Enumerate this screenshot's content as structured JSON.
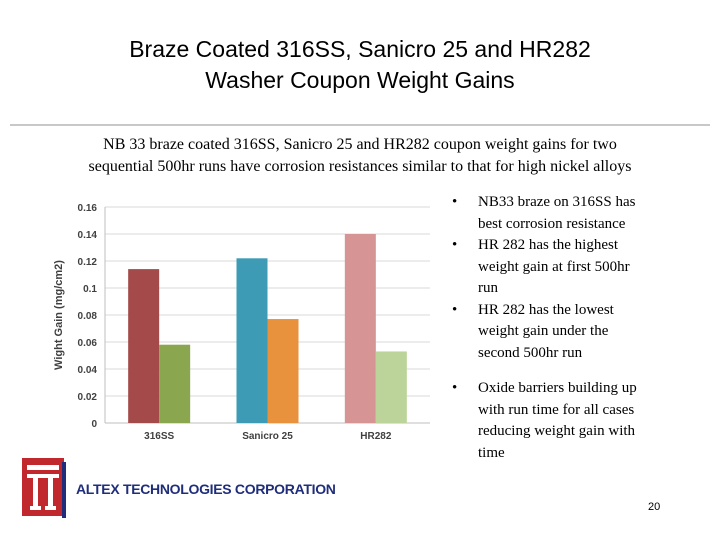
{
  "slide": {
    "title_line1": "Braze Coated 316SS, Sanicro 25 and HR282",
    "title_line2": "Washer Coupon Weight Gains",
    "subtitle_line1": "NB 33 braze coated 316SS, Sanicro 25 and HR282 coupon weight gains for two",
    "subtitle_line2": "sequential 500hr runs have corrosion resistances similar to that for high nickel alloys",
    "bullets_group1": [
      {
        "mark": "•",
        "lines": [
          "NB33 braze on 316SS has",
          "best corrosion resistance"
        ]
      },
      {
        "mark": "•",
        "lines": [
          "HR 282 has the highest",
          "weight gain at first 500hr",
          "run"
        ]
      },
      {
        "mark": "•",
        "lines": [
          "HR 282 has the lowest",
          "weight gain under the",
          "second 500hr run"
        ]
      }
    ],
    "bullets_group2": [
      {
        "mark": "•",
        "lines": [
          "Oxide barriers building up",
          "with run time for all cases",
          "reducing weight gain with",
          "time"
        ]
      }
    ],
    "company": "ALTEX TECHNOLOGIES CORPORATION",
    "page_number": "20"
  },
  "chart_data": {
    "type": "bar",
    "categories": [
      "316SS",
      "Sanicro 25",
      "HR282"
    ],
    "series": [
      {
        "values": [
          0.114,
          0.122,
          0.14
        ]
      },
      {
        "values": [
          0.058,
          0.077,
          0.053
        ]
      }
    ],
    "bar_colors": [
      [
        "#a54a4a",
        "#8aa64e"
      ],
      [
        "#3d9bb6",
        "#e8923e"
      ],
      [
        "#d69494",
        "#bcd49a"
      ]
    ],
    "ylabel": "Wight Gain (mg/cm2)",
    "ylim": [
      0,
      0.16
    ],
    "yticks": [
      "0",
      "0.02",
      "0.04",
      "0.06",
      "0.08",
      "0.1",
      "0.12",
      "0.14",
      "0.16"
    ],
    "grid": true
  },
  "logo_colors": {
    "red": "#c0282d",
    "navy": "#1f2d7a"
  }
}
